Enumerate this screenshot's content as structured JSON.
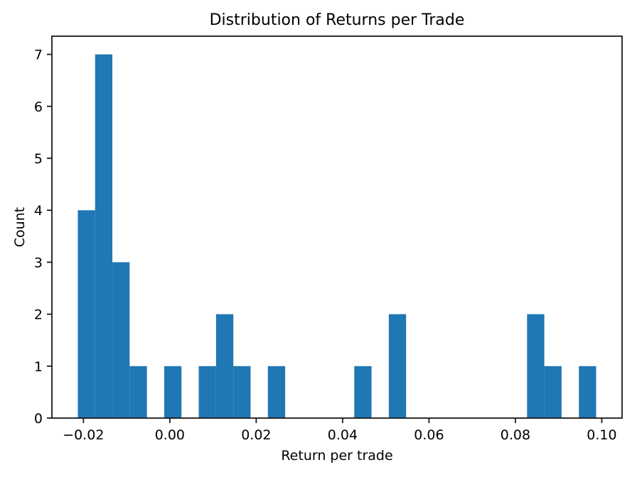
{
  "figure": {
    "background": "#ffffff",
    "text_color": "#000000"
  },
  "chart_data": {
    "type": "bar",
    "subtype": "histogram",
    "title": "Distribution of Returns per Trade",
    "xlabel": "Return per trade",
    "ylabel": "Count",
    "bar_color": "#1f77b4",
    "axis_color": "#1a1a1a",
    "bin_start": -0.0213,
    "bin_width": 0.004,
    "counts": [
      4,
      7,
      3,
      1,
      0,
      1,
      0,
      1,
      2,
      1,
      0,
      1,
      0,
      0,
      0,
      0,
      1,
      0,
      2,
      0,
      0,
      0,
      0,
      0,
      0,
      0,
      2,
      1,
      0,
      1
    ],
    "xlim": [
      -0.0273,
      0.1047
    ],
    "ylim": [
      0,
      7.35
    ],
    "x_ticks": [
      -0.02,
      0.0,
      0.02,
      0.04,
      0.06,
      0.08,
      0.1
    ],
    "x_tick_labels": [
      "−0.02",
      "0.00",
      "0.02",
      "0.04",
      "0.06",
      "0.08",
      "0.10"
    ],
    "y_ticks": [
      0,
      1,
      2,
      3,
      4,
      5,
      6,
      7
    ],
    "y_tick_labels": [
      "0",
      "1",
      "2",
      "3",
      "4",
      "5",
      "6",
      "7"
    ],
    "grid": false,
    "legend_position": "none"
  }
}
